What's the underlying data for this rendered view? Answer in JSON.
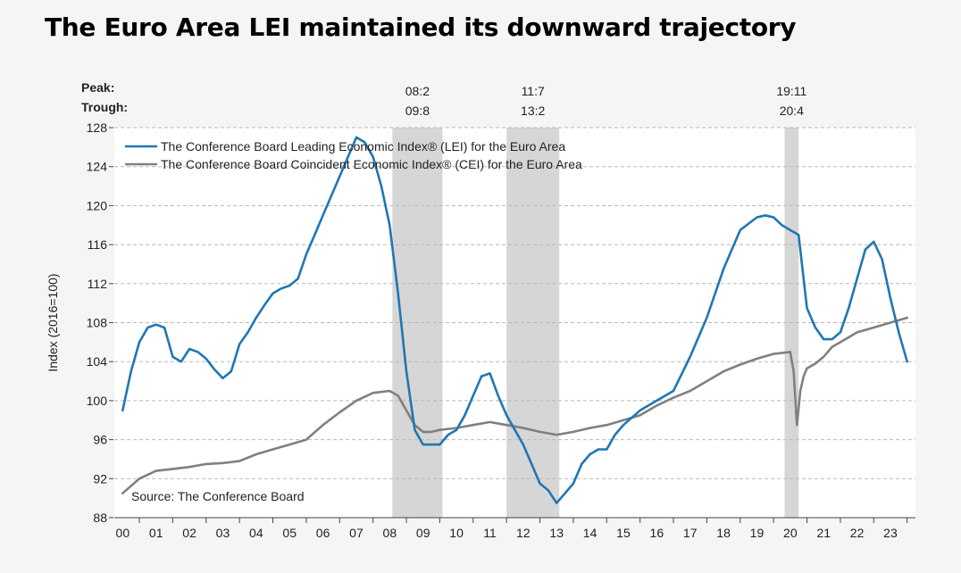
{
  "title": "The Euro Area LEI maintained its downward trajectory",
  "chart_data": {
    "type": "line",
    "ylabel": "Index (2016=100)",
    "ylim": [
      88,
      128
    ],
    "yticks": [
      88,
      92,
      96,
      100,
      104,
      108,
      112,
      116,
      120,
      124,
      128
    ],
    "xlim": [
      1999.75,
      2023.75
    ],
    "xtick_labels": [
      "00",
      "01",
      "02",
      "03",
      "04",
      "05",
      "06",
      "07",
      "08",
      "09",
      "10",
      "11",
      "12",
      "13",
      "14",
      "15",
      "16",
      "17",
      "18",
      "19",
      "20",
      "21",
      "22",
      "23"
    ],
    "grid": "horizontal dashed",
    "legend_position": "top-left",
    "source": "Source: The Conference Board",
    "peak_label": "Peak:",
    "trough_label": "Trough:",
    "recessions": [
      {
        "peak": "08:2",
        "trough": "09:8",
        "start": 2008.08,
        "end": 2009.58
      },
      {
        "peak": "11:7",
        "trough": "13:2",
        "start": 2011.5,
        "end": 2013.08
      },
      {
        "peak": "19:11",
        "trough": "20:4",
        "start": 2019.83,
        "end": 2020.25
      }
    ],
    "recession_color": "#d6d6d6",
    "series": [
      {
        "name": "The Conference Board Leading Economic Index® (LEI) for the Euro Area",
        "color": "#1f77b4",
        "x": [
          2000.0,
          2000.25,
          2000.5,
          2000.75,
          2001.0,
          2001.25,
          2001.5,
          2001.75,
          2002.0,
          2002.25,
          2002.5,
          2002.75,
          2003.0,
          2003.25,
          2003.5,
          2003.75,
          2004.0,
          2004.25,
          2004.5,
          2004.75,
          2005.0,
          2005.25,
          2005.5,
          2005.75,
          2006.0,
          2006.5,
          2007.0,
          2007.25,
          2007.5,
          2007.75,
          2008.0,
          2008.25,
          2008.5,
          2008.75,
          2009.0,
          2009.25,
          2009.5,
          2009.75,
          2010.0,
          2010.25,
          2010.5,
          2010.75,
          2011.0,
          2011.25,
          2011.5,
          2011.75,
          2012.0,
          2012.25,
          2012.5,
          2012.75,
          2013.0,
          2013.25,
          2013.5,
          2013.75,
          2014.0,
          2014.25,
          2014.5,
          2014.75,
          2015.0,
          2015.5,
          2016.0,
          2016.5,
          2017.0,
          2017.5,
          2018.0,
          2018.5,
          2019.0,
          2019.25,
          2019.5,
          2019.75,
          2020.0,
          2020.25,
          2020.5,
          2020.75,
          2021.0,
          2021.25,
          2021.5,
          2021.75,
          2022.0,
          2022.25,
          2022.5,
          2022.75,
          2023.0,
          2023.25,
          2023.5
        ],
        "values": [
          99.0,
          103.0,
          106.0,
          107.5,
          107.8,
          107.5,
          104.5,
          104.0,
          105.3,
          105.0,
          104.3,
          103.2,
          102.3,
          103.0,
          105.8,
          107.0,
          108.5,
          109.8,
          111.0,
          111.5,
          111.8,
          112.5,
          115.0,
          117.0,
          119.0,
          123.0,
          127.0,
          126.5,
          125.0,
          122.0,
          118.0,
          111.0,
          103.0,
          97.0,
          95.5,
          95.5,
          95.5,
          96.5,
          97.0,
          98.5,
          100.5,
          102.5,
          102.8,
          100.5,
          98.5,
          97.0,
          95.5,
          93.5,
          91.5,
          90.8,
          89.5,
          90.5,
          91.5,
          93.5,
          94.5,
          95.0,
          95.0,
          96.5,
          97.5,
          99.0,
          100.0,
          101.0,
          104.5,
          108.5,
          113.5,
          117.5,
          118.8,
          119.0,
          118.8,
          118.0,
          117.5,
          117.0,
          109.5,
          107.5,
          106.3,
          106.3,
          107.0,
          109.5,
          112.5,
          115.5,
          116.3,
          114.5,
          110.5,
          107.0,
          104.0
        ]
      },
      {
        "name": "The Conference Board Coincident Economic Index® (CEI) for the Euro Area",
        "color": "#808080",
        "x": [
          2000.0,
          2000.5,
          2001.0,
          2001.5,
          2002.0,
          2002.5,
          2003.0,
          2003.5,
          2004.0,
          2004.5,
          2005.0,
          2005.5,
          2006.0,
          2006.5,
          2007.0,
          2007.5,
          2008.0,
          2008.25,
          2008.5,
          2008.75,
          2009.0,
          2009.25,
          2009.5,
          2010.0,
          2010.5,
          2011.0,
          2011.5,
          2012.0,
          2012.5,
          2013.0,
          2013.5,
          2014.0,
          2014.5,
          2015.0,
          2015.5,
          2016.0,
          2016.5,
          2017.0,
          2017.5,
          2018.0,
          2018.5,
          2019.0,
          2019.5,
          2019.75,
          2020.0,
          2020.1,
          2020.2,
          2020.3,
          2020.4,
          2020.5,
          2020.75,
          2021.0,
          2021.25,
          2021.5,
          2021.75,
          2022.0,
          2022.5,
          2023.0,
          2023.5
        ],
        "values": [
          90.5,
          92.0,
          92.8,
          93.0,
          93.2,
          93.5,
          93.6,
          93.8,
          94.5,
          95.0,
          95.5,
          96.0,
          97.5,
          98.8,
          100.0,
          100.8,
          101.0,
          100.5,
          99.0,
          97.5,
          96.8,
          96.8,
          97.0,
          97.2,
          97.5,
          97.8,
          97.5,
          97.2,
          96.8,
          96.5,
          96.8,
          97.2,
          97.5,
          98.0,
          98.5,
          99.5,
          100.3,
          101.0,
          102.0,
          103.0,
          103.7,
          104.3,
          104.8,
          104.9,
          105.0,
          103.0,
          97.5,
          101.0,
          102.5,
          103.3,
          103.8,
          104.5,
          105.5,
          106.0,
          106.5,
          107.0,
          107.5,
          108.0,
          108.5
        ]
      }
    ]
  }
}
